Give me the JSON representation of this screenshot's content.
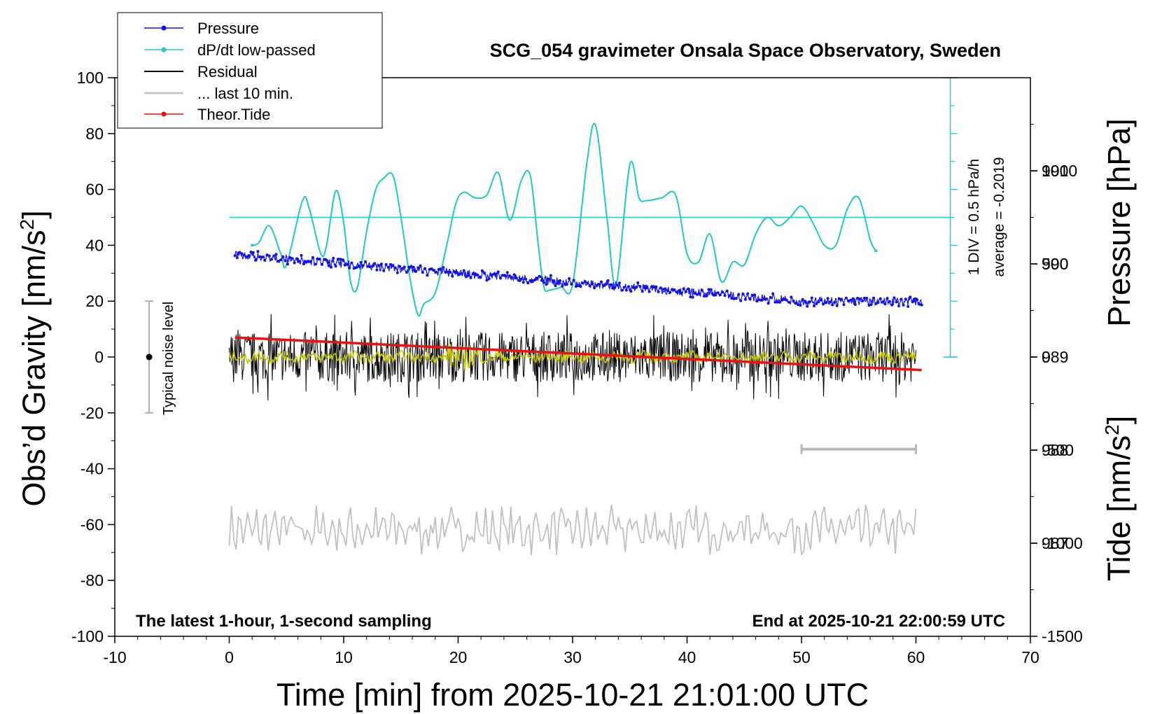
{
  "chart_data": {
    "type": "line",
    "title": "SCG_054 gravimeter Onsala Space Observatory, Sweden",
    "footer_left": "The latest 1-hour, 1-second sampling",
    "footer_right": "End at 2025-10-21 22:00:59 UTC",
    "xlabel": "Time [min] from 2025-10-21 21:01:00 UTC",
    "ylabel_left_main": "Obs’d Gravity [nm/s",
    "ylabel_left_sup": "2",
    "ylabel_left_end": "]",
    "ylabel_right_pressure": "Pressure [hPa]",
    "ylabel_right_tide_main": "Tide [nm/s",
    "ylabel_right_tide_sup": "2",
    "ylabel_right_tide_end": "]",
    "xlim": [
      -10,
      70
    ],
    "ylim": [
      -100,
      100
    ],
    "x_ticks": [
      -10,
      0,
      10,
      20,
      30,
      40,
      50,
      60,
      70
    ],
    "y_ticks": [
      -100,
      -80,
      -60,
      -40,
      -20,
      0,
      20,
      40,
      60,
      80,
      100
    ],
    "pressure_axis": {
      "ticks": [
        987,
        988,
        989,
        990,
        991
      ],
      "range_hPa": [
        986.0,
        992.0
      ]
    },
    "tide_axis": {
      "ticks": [
        -1500,
        -1000,
        -500,
        0,
        500,
        1000
      ],
      "range": [
        -1500,
        1500
      ]
    },
    "dpdt_annotation_1": "1 DIV = 0.5 hPa/h",
    "dpdt_annotation_2": "average = -0.2019",
    "noise_label": "Typical noise level",
    "noise_bar": {
      "x": -7,
      "center": 0,
      "low": -20,
      "high": 20
    },
    "last10_bar": {
      "x_from": 50,
      "x_to": 60,
      "y": -33
    },
    "legend": [
      {
        "label": "Pressure",
        "color": "#1010ee",
        "marker": true
      },
      {
        "label": "dP/dt low-passed",
        "color": "#20c8c8",
        "marker": true
      },
      {
        "label": "Residual",
        "color": "#000000",
        "marker": false
      },
      {
        "label": "... last 10 min.",
        "color": "#c0c0c0",
        "marker": false
      },
      {
        "label": "Theor.Tide",
        "color": "#ee1010",
        "marker": true
      }
    ],
    "series": [
      {
        "name": "Pressure",
        "axis": "pressure_hPa",
        "color": "#1010ee",
        "x": [
          0.5,
          10,
          20,
          30,
          40,
          50,
          60.5
        ],
        "y": [
          990.1,
          990.0,
          989.9,
          989.8,
          989.7,
          989.6,
          989.6
        ]
      },
      {
        "name": "dP/dt low-passed",
        "color": "#20c8c8",
        "baseline": 50,
        "x": [
          2,
          2.6,
          3.5,
          4.5,
          5,
          6.4,
          7,
          8,
          8.5,
          9.3,
          10,
          10.6,
          11.2,
          12,
          12.8,
          13.5,
          14.3,
          15,
          15.8,
          16.5,
          17,
          18,
          19,
          19.8,
          20.5,
          21.5,
          22.5,
          23.5,
          24.5,
          25.5,
          26.3,
          27,
          27.5,
          28,
          29,
          30,
          31.2,
          32,
          33,
          33.8,
          35,
          35.8,
          36.5,
          37.8,
          39,
          40,
          41,
          42,
          43,
          44,
          45,
          46,
          47,
          48,
          49,
          50,
          51,
          52,
          53,
          54,
          55,
          56,
          56.5
        ],
        "y": [
          40,
          41,
          47,
          37,
          33,
          56,
          53,
          37,
          40,
          59.5,
          48,
          27,
          25,
          45,
          60,
          64,
          65,
          50,
          28,
          15,
          19,
          23,
          40,
          55,
          59,
          57,
          58,
          66,
          49,
          63,
          65,
          40,
          25,
          24,
          25,
          26,
          68,
          83,
          50,
          26,
          69,
          57,
          56,
          57,
          58,
          37,
          34,
          44,
          27,
          34,
          33,
          44,
          50,
          47,
          50,
          54,
          48,
          40,
          40,
          53,
          57,
          42,
          38
        ]
      },
      {
        "name": "Residual",
        "color": "#000000",
        "x_range": [
          0,
          60
        ],
        "y_center": 0,
        "y_spread": 12
      },
      {
        "name": "Residual (smoothed)",
        "color": "#c8c800",
        "x_range": [
          0,
          60
        ],
        "y_center": 0,
        "y_spread": 3
      },
      {
        "name": "... last 10 min.",
        "color": "#c0c0c0",
        "x_range": [
          0,
          60
        ],
        "y_center": -62,
        "y_spread": 8
      },
      {
        "name": "Theor.Tide",
        "axis": "tide",
        "color": "#ee1010",
        "x": [
          0.5,
          60.5
        ],
        "y": [
          105,
          -70
        ]
      }
    ]
  }
}
